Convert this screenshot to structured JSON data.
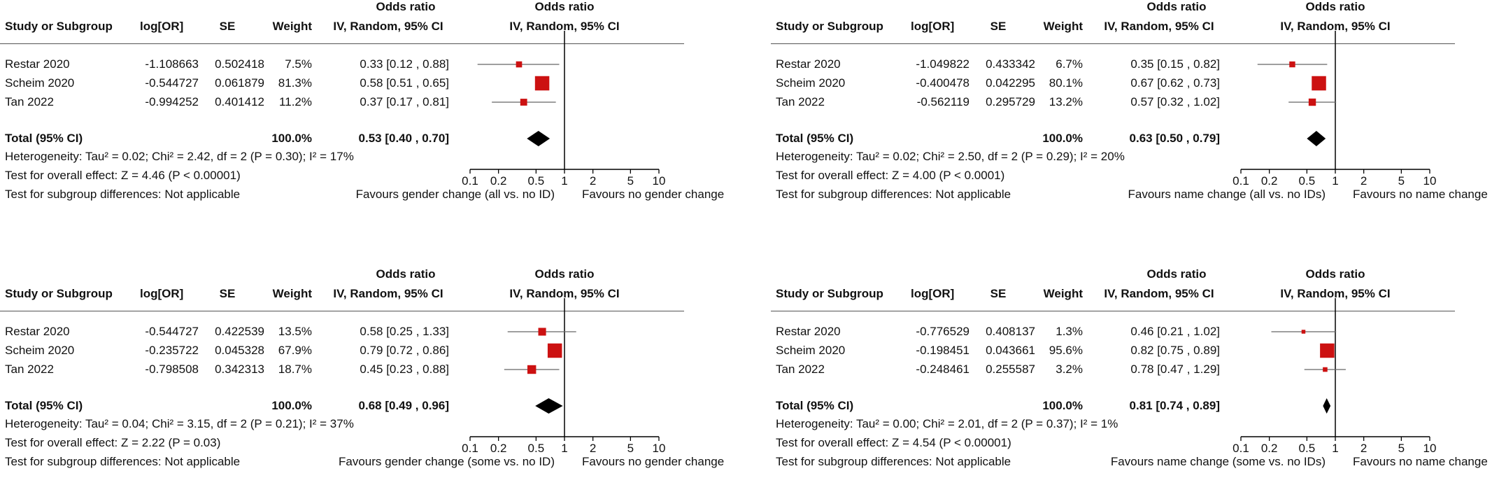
{
  "colors": {
    "marker": "#cc1111",
    "diamond": "#000000",
    "ci_line": "#666666",
    "axis": "#000000"
  },
  "columns": {
    "study": "Study or Subgroup",
    "logor": "log[OR]",
    "se": "SE",
    "weight": "Weight",
    "ci_title": "Odds ratio",
    "ci_sub": "IV, Random, 95% CI",
    "plot_title": "Odds ratio",
    "plot_sub": "IV, Random, 95% CI"
  },
  "panels": [
    {
      "studies": [
        {
          "name": "Restar 2020",
          "logor": "-1.108663",
          "se": "0.502418",
          "weight": "7.5%",
          "ci": "0.33 [0.12 , 0.88]"
        },
        {
          "name": "Scheim 2020",
          "logor": "-0.544727",
          "se": "0.061879",
          "weight": "81.3%",
          "ci": "0.58 [0.51 , 0.65]"
        },
        {
          "name": "Tan 2022",
          "logor": "-0.994252",
          "se": "0.401412",
          "weight": "11.2%",
          "ci": "0.37 [0.17 , 0.81]"
        }
      ],
      "total": {
        "label": "Total (95% CI)",
        "weight": "100.0%",
        "ci": "0.53 [0.40 , 0.70]"
      },
      "heterogeneity": "Heterogeneity: Tau² = 0.02; Chi² = 2.42, df = 2 (P = 0.30); I² = 17%",
      "overall": "Test for overall effect: Z = 4.46 (P < 0.00001)",
      "subgroup": "Test for subgroup differences: Not applicable",
      "favours_left": "Favours gender change (all vs. no ID)",
      "favours_right": "Favours no gender change"
    },
    {
      "studies": [
        {
          "name": "Restar 2020",
          "logor": "-1.049822",
          "se": "0.433342",
          "weight": "6.7%",
          "ci": "0.35 [0.15 , 0.82]"
        },
        {
          "name": "Scheim 2020",
          "logor": "-0.400478",
          "se": "0.042295",
          "weight": "80.1%",
          "ci": "0.67 [0.62 , 0.73]"
        },
        {
          "name": "Tan 2022",
          "logor": "-0.562119",
          "se": "0.295729",
          "weight": "13.2%",
          "ci": "0.57 [0.32 , 1.02]"
        }
      ],
      "total": {
        "label": "Total (95% CI)",
        "weight": "100.0%",
        "ci": "0.63 [0.50 , 0.79]"
      },
      "heterogeneity": "Heterogeneity: Tau² = 0.02; Chi² = 2.50, df = 2 (P = 0.29); I² = 20%",
      "overall": "Test for overall effect: Z = 4.00 (P < 0.0001)",
      "subgroup": "Test for subgroup differences: Not applicable",
      "favours_left": "Favours name change (all vs. no IDs)",
      "favours_right": "Favours no name change"
    },
    {
      "studies": [
        {
          "name": "Restar 2020",
          "logor": "-0.544727",
          "se": "0.422539",
          "weight": "13.5%",
          "ci": "0.58 [0.25 , 1.33]"
        },
        {
          "name": "Scheim 2020",
          "logor": "-0.235722",
          "se": "0.045328",
          "weight": "67.9%",
          "ci": "0.79 [0.72 , 0.86]"
        },
        {
          "name": "Tan 2022",
          "logor": "-0.798508",
          "se": "0.342313",
          "weight": "18.7%",
          "ci": "0.45 [0.23 , 0.88]"
        }
      ],
      "total": {
        "label": "Total (95% CI)",
        "weight": "100.0%",
        "ci": "0.68 [0.49 , 0.96]"
      },
      "heterogeneity": "Heterogeneity: Tau² = 0.04; Chi² = 3.15, df = 2 (P = 0.21); I² = 37%",
      "overall": "Test for overall effect: Z = 2.22 (P = 0.03)",
      "subgroup": "Test for subgroup differences: Not applicable",
      "favours_left": "Favours gender change (some vs. no ID)",
      "favours_right": "Favours no gender change"
    },
    {
      "studies": [
        {
          "name": "Restar 2020",
          "logor": "-0.776529",
          "se": "0.408137",
          "weight": "1.3%",
          "ci": "0.46 [0.21 , 1.02]"
        },
        {
          "name": "Scheim 2020",
          "logor": "-0.198451",
          "se": "0.043661",
          "weight": "95.6%",
          "ci": "0.82 [0.75 , 0.89]"
        },
        {
          "name": "Tan 2022",
          "logor": "-0.248461",
          "se": "0.255587",
          "weight": "3.2%",
          "ci": "0.78 [0.47 , 1.29]"
        }
      ],
      "total": {
        "label": "Total (95% CI)",
        "weight": "100.0%",
        "ci": "0.81 [0.74 , 0.89]"
      },
      "heterogeneity": "Heterogeneity: Tau² = 0.00; Chi² = 2.01, df = 2 (P = 0.37); I² = 1%",
      "overall": "Test for overall effect: Z = 4.54 (P < 0.00001)",
      "subgroup": "Test for subgroup differences: Not applicable",
      "favours_left": "Favours name change (some vs. no IDs)",
      "favours_right": "Favours no name change"
    }
  ],
  "chart_data": [
    {
      "type": "forest",
      "x_scale": "log",
      "xlim": [
        0.1,
        10
      ],
      "xticks": [
        0.1,
        0.2,
        0.5,
        1,
        2,
        5,
        10
      ],
      "tick_labels": [
        "0.1",
        "0.2",
        "0.5",
        "1",
        "2",
        "5",
        "10"
      ],
      "points": [
        {
          "study": "Restar 2020",
          "or": 0.33,
          "lower": 0.12,
          "upper": 0.88,
          "weight": 7.5
        },
        {
          "study": "Scheim 2020",
          "or": 0.58,
          "lower": 0.51,
          "upper": 0.65,
          "weight": 81.3
        },
        {
          "study": "Tan 2022",
          "or": 0.37,
          "lower": 0.17,
          "upper": 0.81,
          "weight": 11.2
        }
      ],
      "pooled": {
        "or": 0.53,
        "lower": 0.4,
        "upper": 0.7
      }
    },
    {
      "type": "forest",
      "x_scale": "log",
      "xlim": [
        0.1,
        10
      ],
      "xticks": [
        0.1,
        0.2,
        0.5,
        1,
        2,
        5,
        10
      ],
      "tick_labels": [
        "0.1",
        "0.2",
        "0.5",
        "1",
        "2",
        "5",
        "10"
      ],
      "points": [
        {
          "study": "Restar 2020",
          "or": 0.35,
          "lower": 0.15,
          "upper": 0.82,
          "weight": 6.7
        },
        {
          "study": "Scheim 2020",
          "or": 0.67,
          "lower": 0.62,
          "upper": 0.73,
          "weight": 80.1
        },
        {
          "study": "Tan 2022",
          "or": 0.57,
          "lower": 0.32,
          "upper": 1.02,
          "weight": 13.2
        }
      ],
      "pooled": {
        "or": 0.63,
        "lower": 0.5,
        "upper": 0.79
      }
    },
    {
      "type": "forest",
      "x_scale": "log",
      "xlim": [
        0.1,
        10
      ],
      "xticks": [
        0.1,
        0.2,
        0.5,
        1,
        2,
        5,
        10
      ],
      "tick_labels": [
        "0.1",
        "0.2",
        "0.5",
        "1",
        "2",
        "5",
        "10"
      ],
      "points": [
        {
          "study": "Restar 2020",
          "or": 0.58,
          "lower": 0.25,
          "upper": 1.33,
          "weight": 13.5
        },
        {
          "study": "Scheim 2020",
          "or": 0.79,
          "lower": 0.72,
          "upper": 0.86,
          "weight": 67.9
        },
        {
          "study": "Tan 2022",
          "or": 0.45,
          "lower": 0.23,
          "upper": 0.88,
          "weight": 18.7
        }
      ],
      "pooled": {
        "or": 0.68,
        "lower": 0.49,
        "upper": 0.96
      }
    },
    {
      "type": "forest",
      "x_scale": "log",
      "xlim": [
        0.1,
        10
      ],
      "xticks": [
        0.1,
        0.2,
        0.5,
        1,
        2,
        5,
        10
      ],
      "tick_labels": [
        "0.1",
        "0.2",
        "0.5",
        "1",
        "2",
        "5",
        "10"
      ],
      "points": [
        {
          "study": "Restar 2020",
          "or": 0.46,
          "lower": 0.21,
          "upper": 1.02,
          "weight": 1.3
        },
        {
          "study": "Scheim 2020",
          "or": 0.82,
          "lower": 0.75,
          "upper": 0.89,
          "weight": 95.6
        },
        {
          "study": "Tan 2022",
          "or": 0.78,
          "lower": 0.47,
          "upper": 1.29,
          "weight": 3.2
        }
      ],
      "pooled": {
        "or": 0.81,
        "lower": 0.74,
        "upper": 0.89
      }
    }
  ]
}
